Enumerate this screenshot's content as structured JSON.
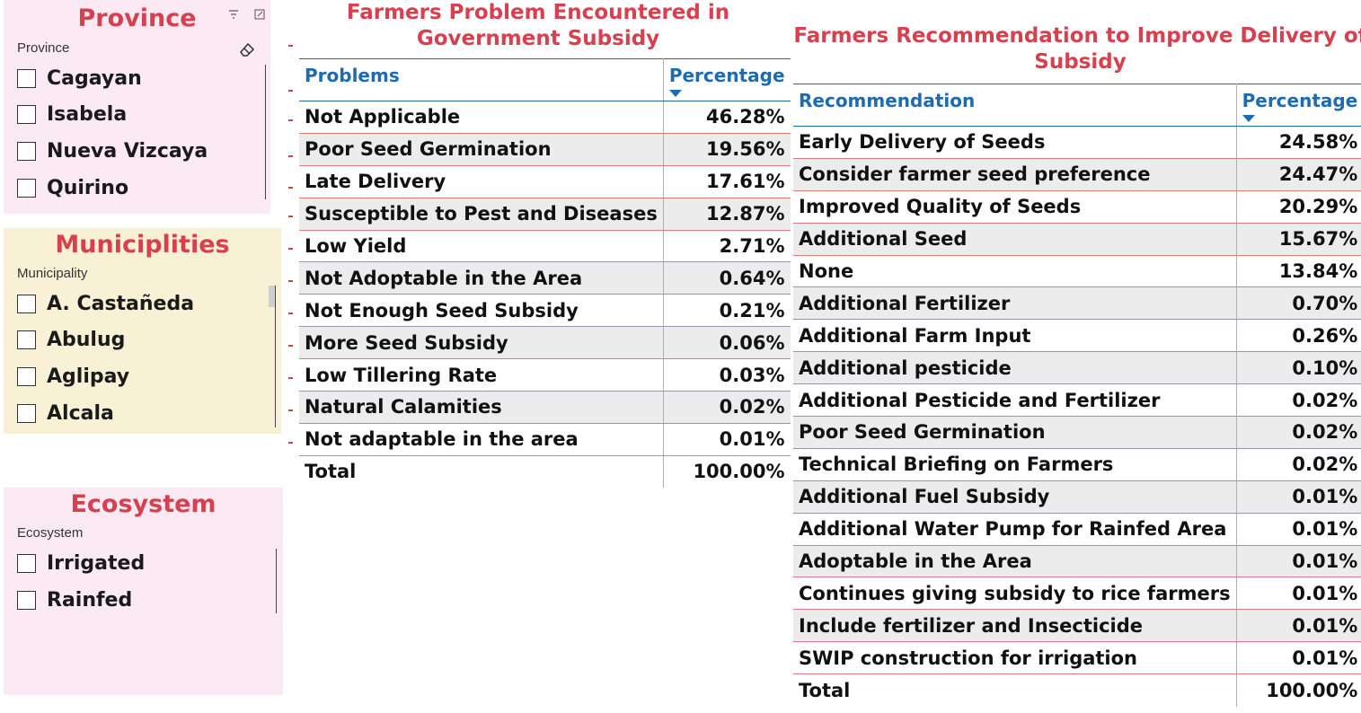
{
  "slicers": {
    "province": {
      "title": "Province",
      "label": "Province",
      "items": [
        "Cagayan",
        "Isabela",
        "Nueva Vizcaya",
        "Quirino"
      ]
    },
    "municipality": {
      "title": "Municiplities",
      "label": "Municipality",
      "items": [
        "A. Castañeda",
        "Abulug",
        "Aglipay",
        "Alcala"
      ]
    },
    "ecosystem": {
      "title": "Ecosystem",
      "label": "Ecosystem",
      "items": [
        "Irrigated",
        "Rainfed"
      ]
    }
  },
  "problems_table": {
    "title_line1": "Farmers Problem Encountered in",
    "title_line2": "Government Subsidy",
    "col1": "Problems",
    "col2": "Percentage",
    "rows": [
      [
        "Not Applicable",
        "46.28%"
      ],
      [
        "Poor Seed Germination",
        "19.56%"
      ],
      [
        "Late Delivery",
        "17.61%"
      ],
      [
        "Susceptible to Pest and Diseases",
        "12.87%"
      ],
      [
        "Low Yield",
        "2.71%"
      ],
      [
        "Not Adoptable in the Area",
        "0.64%"
      ],
      [
        "Not Enough Seed Subsidy",
        "0.21%"
      ],
      [
        "More Seed Subsidy",
        "0.06%"
      ],
      [
        "Low Tillering Rate",
        "0.03%"
      ],
      [
        "Natural Calamities",
        "0.02%"
      ],
      [
        "Not adaptable in the area",
        "0.01%"
      ]
    ],
    "total_label": "Total",
    "total_value": "100.00%"
  },
  "recommendation_table": {
    "title_line1": "Farmers Recommendation to Improve Delivery of",
    "title_line2": "Subsidy",
    "col1": "Recommendation",
    "col2": "Percentage",
    "rows": [
      [
        "Early Delivery of Seeds",
        "24.58%"
      ],
      [
        "Consider farmer seed preference",
        "24.47%"
      ],
      [
        "Improved Quality of Seeds",
        "20.29%"
      ],
      [
        "Additional Seed",
        "15.67%"
      ],
      [
        "None",
        "13.84%"
      ],
      [
        "Additional Fertilizer",
        "0.70%"
      ],
      [
        "Additional Farm Input",
        "0.26%"
      ],
      [
        "Additional pesticide",
        "0.10%"
      ],
      [
        "Additional Pesticide and Fertilizer",
        "0.02%"
      ],
      [
        "Poor Seed Germination",
        "0.02%"
      ],
      [
        "Technical Briefing on Farmers",
        "0.02%"
      ],
      [
        "Additional Fuel Subsidy",
        "0.01%"
      ],
      [
        "Additional Water Pump for Rainfed Area",
        "0.01%"
      ],
      [
        "Adoptable in the Area",
        "0.01%"
      ],
      [
        "Continues giving subsidy to rice farmers",
        "0.01%"
      ],
      [
        "Include fertilizer and Insecticide",
        "0.01%"
      ],
      [
        "SWIP construction for irrigation",
        "0.01%"
      ]
    ],
    "total_label": "Total",
    "total_value": "100.00%"
  },
  "icons": [
    "filter-icon",
    "focus-mode-icon",
    "eraser-icon",
    "sort-descending-icon"
  ],
  "colors": {
    "title_red": "#d6404f",
    "header_blue": "#1f6bb0",
    "province_bg": "#fbe9f3",
    "municipality_bg": "#f8f1d6",
    "ecosystem_bg": "#fbe9f3",
    "alt_row": "#ececec"
  }
}
